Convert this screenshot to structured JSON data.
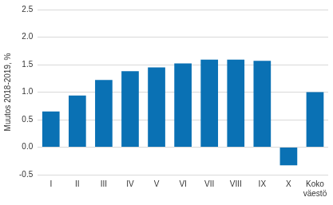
{
  "chart_data": {
    "type": "bar",
    "y_label": "Muutos 2018-2019, %",
    "categories": [
      "I",
      "II",
      "III",
      "IV",
      "V",
      "VI",
      "VII",
      "VIII",
      "IX",
      "X",
      "Koko väestö"
    ],
    "values": [
      0.65,
      0.94,
      1.22,
      1.38,
      1.45,
      1.52,
      1.59,
      1.59,
      1.57,
      -0.33,
      1.0
    ],
    "color": "#0a71b4",
    "ylim": [
      -0.5,
      2.5
    ],
    "yticks": [
      -0.5,
      {
        "value": 0,
        "label": "0.0"
      },
      0.5,
      {
        "value": 1,
        "label": "1.0"
      },
      1.5,
      {
        "value": 2,
        "label": "2.0"
      },
      2.5
    ],
    "grid": true
  }
}
